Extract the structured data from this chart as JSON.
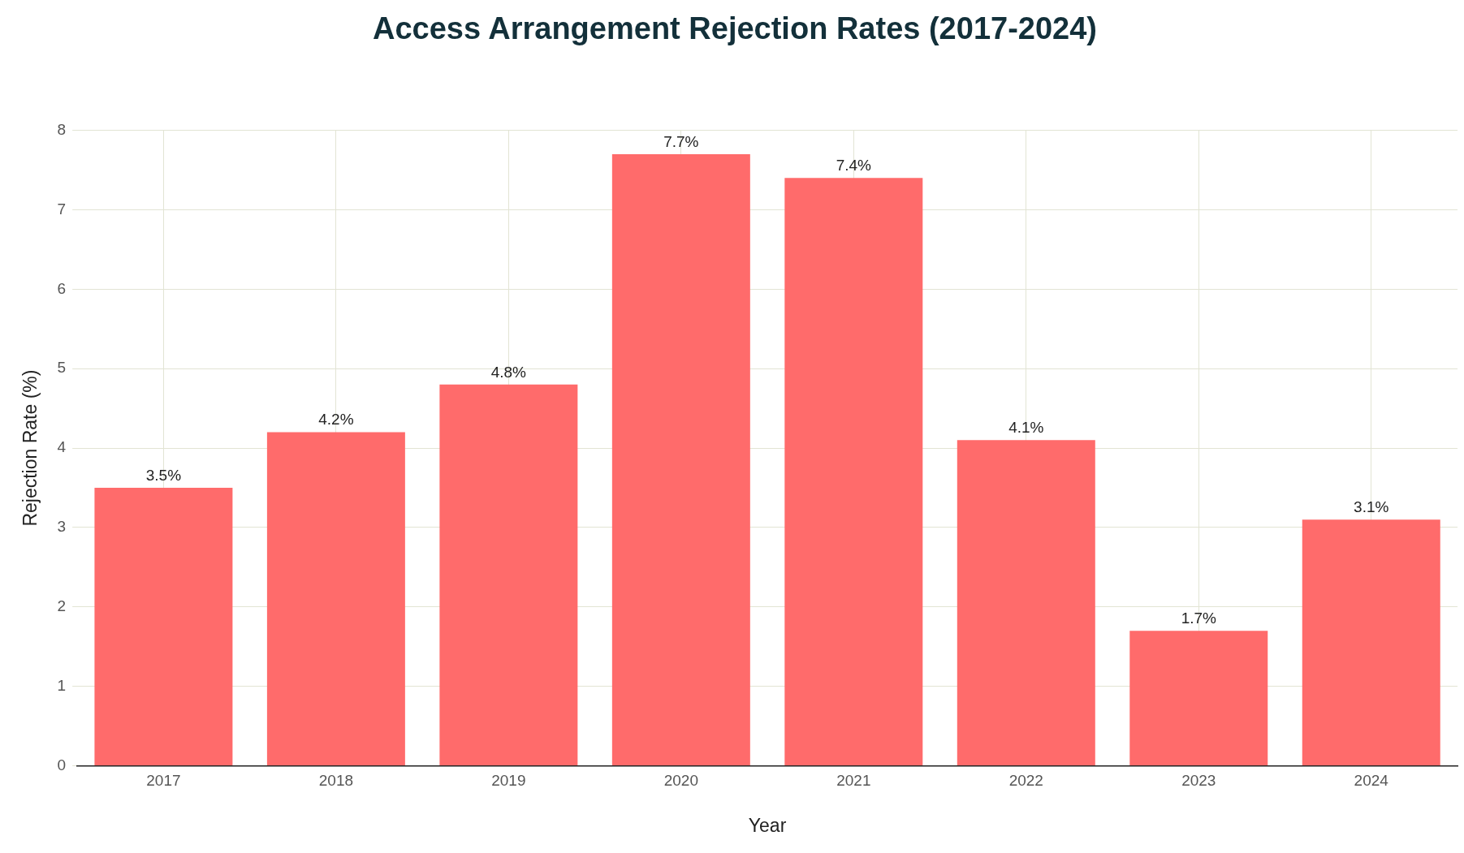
{
  "chart_data": {
    "type": "bar",
    "title": "Access Arrangement Rejection Rates (2017-2024)",
    "xlabel": "Year",
    "ylabel": "Rejection Rate (%)",
    "categories": [
      "2017",
      "2018",
      "2019",
      "2020",
      "2021",
      "2022",
      "2023",
      "2024"
    ],
    "values": [
      3.5,
      4.2,
      4.8,
      7.7,
      7.4,
      4.1,
      1.7,
      3.1
    ],
    "value_labels": [
      "3.5%",
      "4.2%",
      "4.8%",
      "7.7%",
      "7.4%",
      "4.1%",
      "1.7%",
      "3.1%"
    ],
    "color": "#ff6b6b",
    "ylim": [
      0,
      8
    ],
    "yticks": [
      0,
      1,
      2,
      3,
      4,
      5,
      6,
      7,
      8
    ],
    "grid": true,
    "legend": false
  }
}
